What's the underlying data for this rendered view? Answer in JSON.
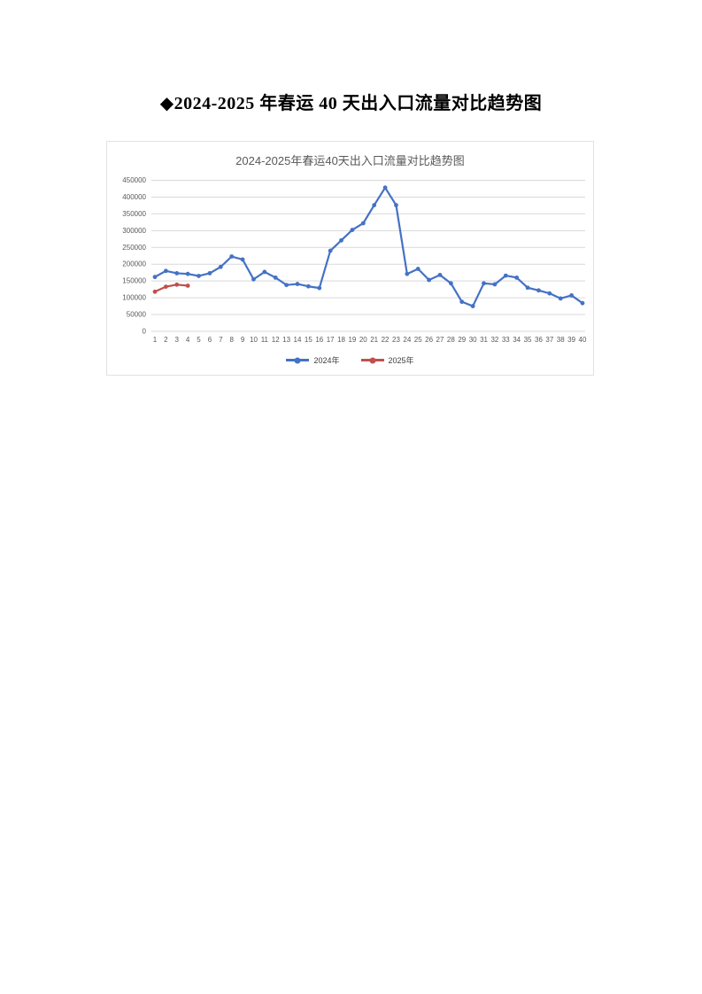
{
  "page": {
    "heading": "◆2024-2025 年春运 40 天出入口流量对比趋势图"
  },
  "chart_data": {
    "type": "line",
    "title": "2024-2025年春运40天出入口流量对比趋势图",
    "xlabel": "",
    "ylabel": "",
    "ylim": [
      0,
      450000
    ],
    "ytick_step": 50000,
    "yticks": [
      0,
      50000,
      100000,
      150000,
      200000,
      250000,
      300000,
      350000,
      400000,
      450000
    ],
    "grid": true,
    "legend_position": "bottom",
    "x": [
      1,
      2,
      3,
      4,
      5,
      6,
      7,
      8,
      9,
      10,
      11,
      12,
      13,
      14,
      15,
      16,
      17,
      18,
      19,
      20,
      21,
      22,
      23,
      24,
      25,
      26,
      27,
      28,
      29,
      30,
      31,
      32,
      33,
      34,
      35,
      36,
      37,
      38,
      39,
      40
    ],
    "series": [
      {
        "name": "2024年",
        "color": "#4472C4",
        "values": [
          162000,
          180000,
          173000,
          171000,
          165000,
          173000,
          192000,
          223000,
          214000,
          155000,
          177000,
          160000,
          138000,
          141000,
          134000,
          129000,
          240000,
          271000,
          302000,
          322000,
          376000,
          428000,
          376000,
          171000,
          186000,
          153000,
          168000,
          143000,
          88000,
          75000,
          143000,
          140000,
          166000,
          160000,
          130000,
          122000,
          113000,
          98000,
          107000,
          84000
        ]
      },
      {
        "name": "2025年",
        "color": "#C0504D",
        "values": [
          118000,
          133000,
          139000,
          136000
        ]
      }
    ],
    "colors": {
      "grid": "#D9D9D9",
      "axis_text": "#595959",
      "title_text": "#595959",
      "chart_border": "#E2E2E2"
    }
  }
}
